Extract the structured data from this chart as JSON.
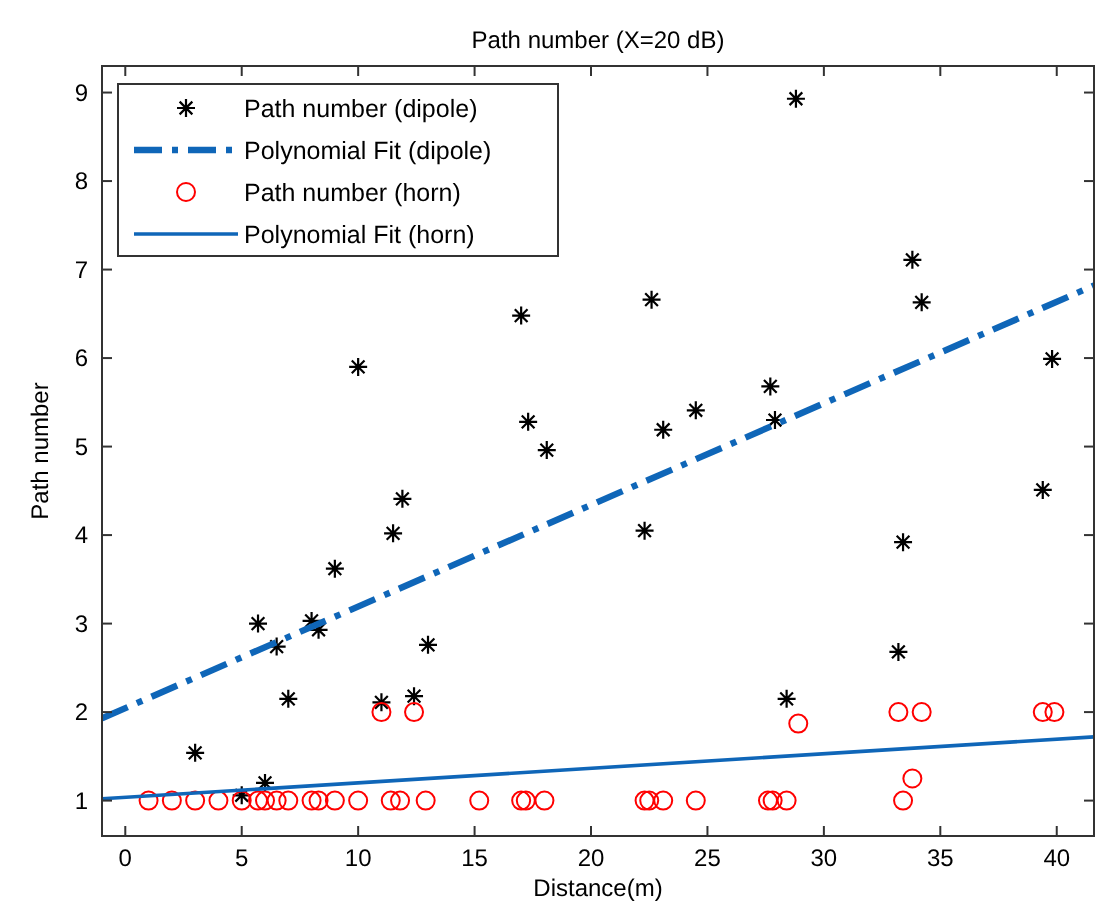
{
  "chart_data": {
    "type": "scatter",
    "title": "Path number (X=20 dB)",
    "xlabel": "Distance(m)",
    "ylabel": "Path number",
    "xlim": [
      -1,
      41.6
    ],
    "ylim": [
      0.6,
      9.3
    ],
    "xticks": [
      0,
      5,
      10,
      15,
      20,
      25,
      30,
      35,
      40
    ],
    "yticks": [
      1,
      2,
      3,
      4,
      5,
      6,
      7,
      8,
      9
    ],
    "grid": false,
    "legend": "top left",
    "series": [
      {
        "name": "Path number (dipole)",
        "marker": "cross",
        "color": "#000000",
        "x": [
          3.0,
          5.0,
          5.7,
          6.0,
          6.5,
          7.0,
          8.0,
          8.3,
          9.0,
          10.0,
          11.0,
          11.5,
          11.9,
          12.4,
          13.0,
          17.0,
          17.3,
          18.1,
          22.3,
          22.6,
          23.1,
          24.5,
          27.7,
          27.9,
          28.4,
          28.8,
          33.2,
          33.4,
          33.8,
          34.2,
          39.4,
          39.8
        ],
        "values": [
          1.54,
          1.06,
          3.0,
          1.2,
          2.74,
          2.15,
          3.03,
          2.93,
          3.62,
          5.9,
          2.11,
          4.02,
          4.41,
          2.18,
          2.76,
          6.48,
          5.28,
          4.96,
          4.05,
          6.66,
          5.19,
          5.41,
          5.68,
          5.3,
          2.15,
          8.93,
          2.68,
          3.92,
          7.11,
          6.63,
          4.51,
          5.99
        ]
      },
      {
        "name": "Polynomial Fit (dipole)",
        "type": "line",
        "marker": "none",
        "line_style": "dashed",
        "color": "#0f66b8",
        "x": [
          -1,
          41.6
        ],
        "values": [
          1.93,
          6.82
        ]
      },
      {
        "name": "Path number (horn)",
        "marker": "circle",
        "color": "#ff0000",
        "x": [
          1.0,
          2.0,
          3.0,
          4.0,
          5.0,
          5.7,
          6.0,
          6.5,
          7.0,
          8.0,
          8.3,
          9.0,
          10.0,
          11.4,
          11.8,
          12.9,
          15.2,
          17.0,
          17.2,
          18.0,
          22.3,
          22.5,
          23.1,
          24.5,
          27.6,
          27.8,
          28.4,
          33.4,
          11.0,
          12.4,
          28.9,
          33.2,
          34.2,
          39.4,
          39.9,
          33.8
        ],
        "values": [
          1,
          1,
          1,
          1,
          1,
          1,
          1,
          1,
          1,
          1,
          1,
          1,
          1,
          1,
          1,
          1,
          1,
          1,
          1,
          1,
          1,
          1,
          1,
          1,
          1,
          1,
          1,
          1,
          2.0,
          2.0,
          1.87,
          2.0,
          2.0,
          2.0,
          2.0,
          1.25
        ]
      },
      {
        "name": "Polynomial Fit (horn)",
        "type": "line",
        "marker": "none",
        "line_style": "solid",
        "color": "#0f66b8",
        "x": [
          -1,
          41.6
        ],
        "values": [
          1.02,
          1.72
        ]
      }
    ]
  }
}
